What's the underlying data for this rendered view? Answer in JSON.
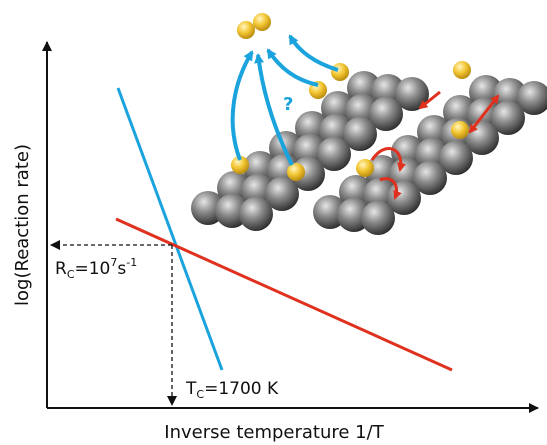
{
  "y_axis_label": "log(Reaction rate)",
  "x_axis_label": "Inverse temperature 1/T",
  "rc_label": {
    "symbol": "R",
    "subscript": "C",
    "text": "=10",
    "exponent": "7",
    "unit": "s",
    "unit_exponent": "-1"
  },
  "tc_label": {
    "symbol": "T",
    "subscript": "C",
    "text": "=1700 K"
  },
  "question_mark": "?"
}
